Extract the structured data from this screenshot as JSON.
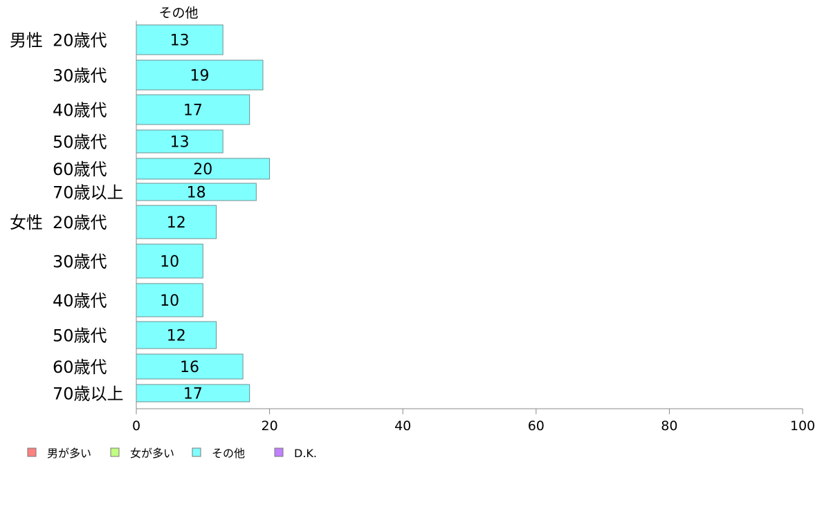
{
  "chart_data": {
    "type": "bar",
    "orientation": "horizontal",
    "series_header": "その他",
    "groups": [
      {
        "label": "男性",
        "categories": [
          "20歳代",
          "30歳代",
          "40歳代",
          "50歳代",
          "60歳代",
          "70歳以上"
        ]
      },
      {
        "label": "女性",
        "categories": [
          "20歳代",
          "30歳代",
          "40歳代",
          "50歳代",
          "60歳代",
          "70歳以上"
        ]
      }
    ],
    "series": [
      {
        "name": "その他",
        "color": "#80ffff",
        "values": [
          13,
          19,
          17,
          13,
          20,
          18,
          12,
          10,
          10,
          12,
          16,
          17
        ]
      }
    ],
    "xlim": [
      0,
      100
    ],
    "xticks": [
      0,
      20,
      40,
      60,
      80,
      100
    ],
    "grid": false,
    "legend_position": "bottom-left",
    "legend": [
      {
        "label": "男が多い",
        "color": "#ff8080"
      },
      {
        "label": "女が多い",
        "color": "#c0ff80"
      },
      {
        "label": "その他",
        "color": "#80ffff"
      },
      {
        "label": "D.K.",
        "color": "#c080ff"
      }
    ]
  }
}
